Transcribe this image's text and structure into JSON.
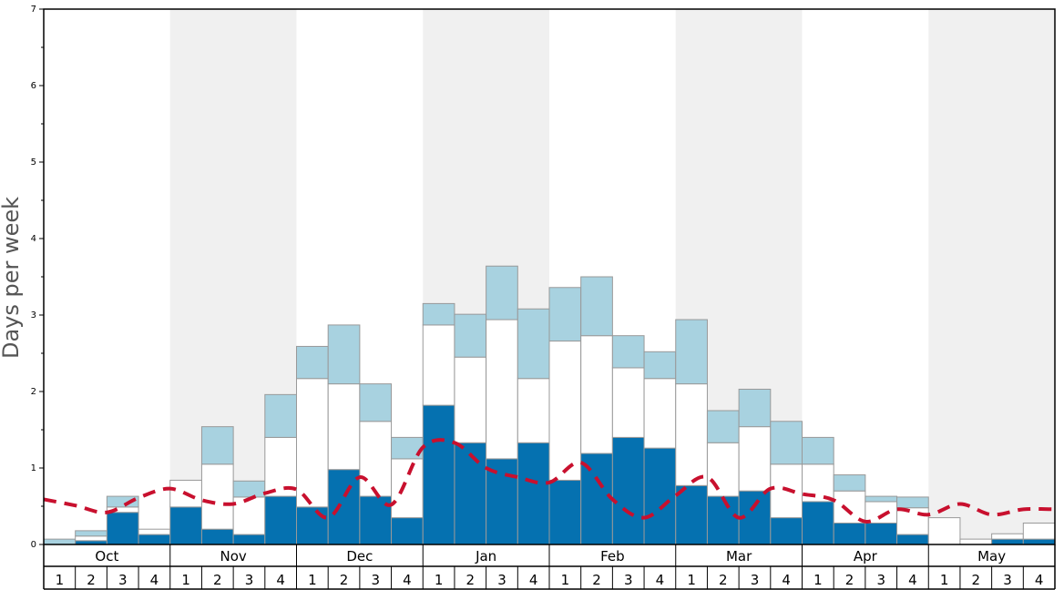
{
  "chart_data": {
    "type": "bar",
    "ylabel": "Days per week",
    "ylim": [
      0,
      7
    ],
    "yticks": [
      0,
      1,
      2,
      3,
      4,
      5,
      6,
      7
    ],
    "months": [
      "Oct",
      "Nov",
      "Dec",
      "Jan",
      "Feb",
      "Mar",
      "Apr",
      "May"
    ],
    "weeks_per_month": [
      "1",
      "2",
      "3",
      "4"
    ],
    "month_shading": [
      false,
      true,
      false,
      true,
      false,
      true,
      false,
      true
    ],
    "series": [
      {
        "key": "dark",
        "values": [
          0.0,
          0.05,
          0.42,
          0.13,
          0.49,
          0.2,
          0.13,
          0.63,
          0.49,
          0.98,
          0.63,
          0.35,
          1.82,
          1.33,
          1.12,
          1.33,
          0.84,
          1.19,
          1.4,
          1.26,
          0.77,
          0.63,
          0.7,
          0.35,
          0.56,
          0.28,
          0.28,
          0.13,
          0.0,
          0.0,
          0.07,
          0.07
        ]
      },
      {
        "key": "white",
        "values": [
          0.0,
          0.06,
          0.07,
          0.07,
          0.35,
          0.85,
          0.49,
          0.77,
          1.68,
          1.12,
          0.98,
          0.77,
          1.05,
          1.12,
          1.82,
          0.84,
          1.82,
          1.54,
          0.91,
          0.91,
          1.33,
          0.7,
          0.84,
          0.7,
          0.49,
          0.42,
          0.28,
          0.35,
          0.35,
          0.07,
          0.07,
          0.21
        ]
      },
      {
        "key": "light",
        "values": [
          0.07,
          0.07,
          0.14,
          0.0,
          0.0,
          0.49,
          0.21,
          0.56,
          0.42,
          0.77,
          0.49,
          0.28,
          0.28,
          0.56,
          0.7,
          0.91,
          0.7,
          0.77,
          0.42,
          0.35,
          0.84,
          0.42,
          0.49,
          0.56,
          0.35,
          0.21,
          0.07,
          0.14,
          0.0,
          0.0,
          0.0,
          0.0
        ]
      }
    ],
    "line": {
      "style": "dashed",
      "values": [
        0.59,
        0.51,
        0.42,
        0.61,
        0.73,
        0.58,
        0.53,
        0.67,
        0.72,
        0.35,
        0.88,
        0.52,
        1.27,
        1.33,
        1.0,
        0.88,
        0.81,
        1.07,
        0.59,
        0.35,
        0.64,
        0.88,
        0.35,
        0.73,
        0.66,
        0.58,
        0.3,
        0.46,
        0.39,
        0.53,
        0.39,
        0.46,
        0.46
      ]
    },
    "colors": {
      "dark": "#0571b0",
      "white": "#ffffff",
      "light": "#a8d2e0",
      "line": "#c8102e",
      "shade": "#f0f0f0",
      "bar_border": "#999999"
    }
  }
}
